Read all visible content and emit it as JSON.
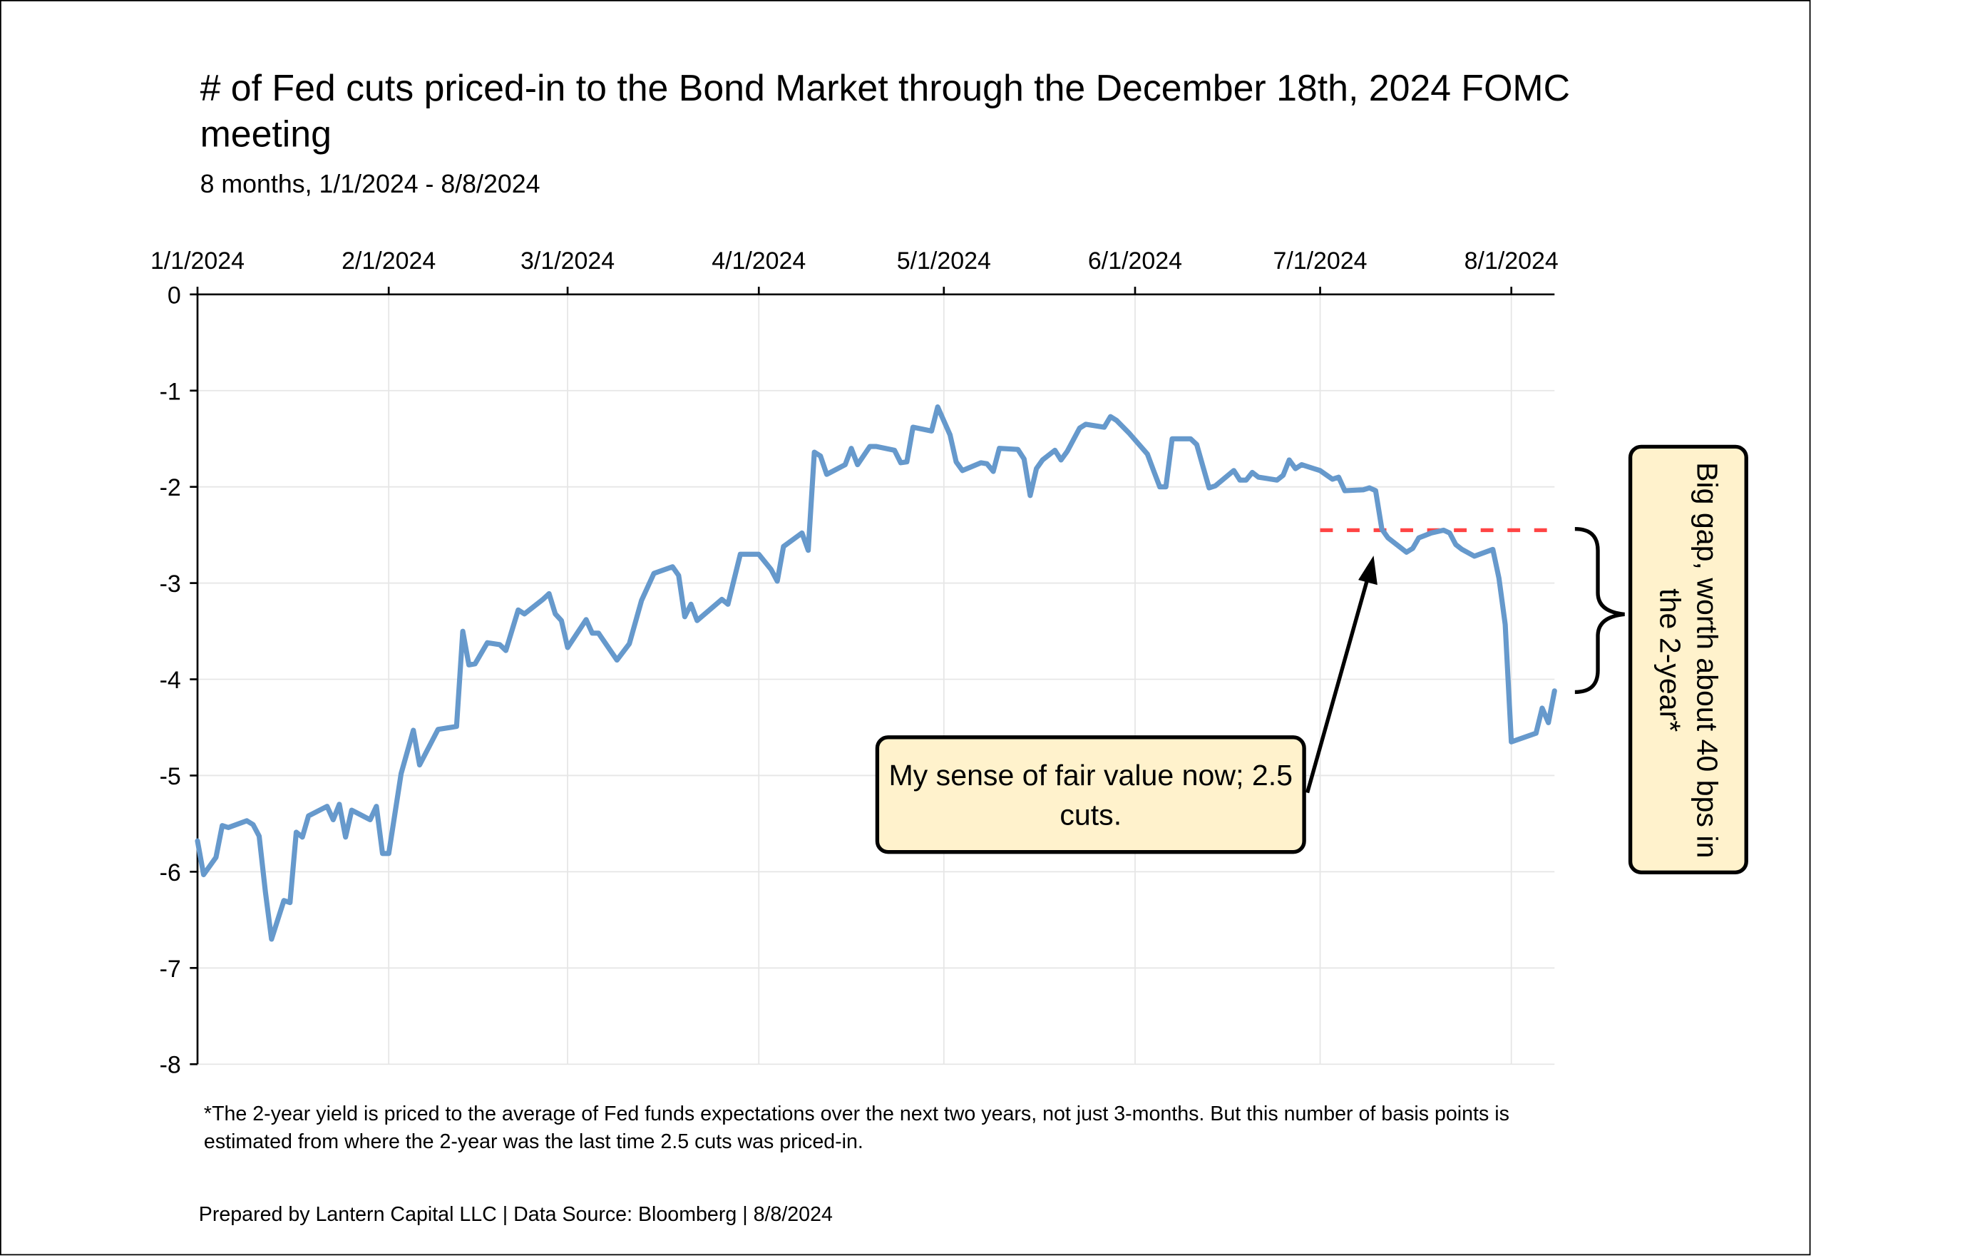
{
  "chart_data": {
    "type": "line",
    "title": "# of Fed cuts priced-in to the Bond Market through the December 18th, 2024 FOMC meeting",
    "subtitle": "8 months, 1/1/2024 - 8/8/2024",
    "xlabel": "",
    "ylabel": "",
    "xlim": [
      "2024-01-01",
      "2024-08-08"
    ],
    "ylim": [
      -8,
      0
    ],
    "x_ticks": [
      "1/1/2024",
      "2/1/2024",
      "3/1/2024",
      "4/1/2024",
      "5/1/2024",
      "6/1/2024",
      "7/1/2024",
      "8/1/2024"
    ],
    "x_tick_dates": [
      "2024-01-01",
      "2024-02-01",
      "2024-03-01",
      "2024-04-01",
      "2024-05-01",
      "2024-06-01",
      "2024-07-01",
      "2024-08-01"
    ],
    "y_ticks": [
      "0",
      "-1",
      "-2",
      "-3",
      "-4",
      "-5",
      "-6",
      "-7",
      "-8"
    ],
    "x_axis_position": "top",
    "grid": true,
    "line_color": "#6699CC",
    "fair_value_line": {
      "value": -2.45,
      "from": "2024-07-01",
      "color": "#FF4444",
      "style": "dashed"
    },
    "x": [
      "2024-01-01",
      "2024-01-02",
      "2024-01-04",
      "2024-01-05",
      "2024-01-06",
      "2024-01-09",
      "2024-01-10",
      "2024-01-11",
      "2024-01-12",
      "2024-01-13",
      "2024-01-15",
      "2024-01-16",
      "2024-01-17",
      "2024-01-18",
      "2024-01-19",
      "2024-01-22",
      "2024-01-23",
      "2024-01-24",
      "2024-01-25",
      "2024-01-26",
      "2024-01-29",
      "2024-01-30",
      "2024-01-31",
      "2024-02-01",
      "2024-02-03",
      "2024-02-05",
      "2024-02-06",
      "2024-02-09",
      "2024-02-12",
      "2024-02-13",
      "2024-02-14",
      "2024-02-15",
      "2024-02-17",
      "2024-02-19",
      "2024-02-20",
      "2024-02-22",
      "2024-02-23",
      "2024-02-26",
      "2024-02-27",
      "2024-02-28",
      "2024-02-29",
      "2024-03-01",
      "2024-03-04",
      "2024-03-05",
      "2024-03-06",
      "2024-03-09",
      "2024-03-11",
      "2024-03-13",
      "2024-03-15",
      "2024-03-18",
      "2024-03-19",
      "2024-03-20",
      "2024-03-21",
      "2024-03-22",
      "2024-03-26",
      "2024-03-27",
      "2024-03-29",
      "2024-04-01",
      "2024-04-03",
      "2024-04-04",
      "2024-04-05",
      "2024-04-08",
      "2024-04-09",
      "2024-04-10",
      "2024-04-11",
      "2024-04-12",
      "2024-04-15",
      "2024-04-16",
      "2024-04-17",
      "2024-04-19",
      "2024-04-20",
      "2024-04-23",
      "2024-04-24",
      "2024-04-25",
      "2024-04-26",
      "2024-04-29",
      "2024-04-30",
      "2024-05-02",
      "2024-05-03",
      "2024-05-04",
      "2024-05-07",
      "2024-05-08",
      "2024-05-09",
      "2024-05-10",
      "2024-05-13",
      "2024-05-14",
      "2024-05-15",
      "2024-05-16",
      "2024-05-17",
      "2024-05-19",
      "2024-05-20",
      "2024-05-21",
      "2024-05-23",
      "2024-05-24",
      "2024-05-27",
      "2024-05-28",
      "2024-05-29",
      "2024-05-31",
      "2024-06-03",
      "2024-06-04",
      "2024-06-05",
      "2024-06-06",
      "2024-06-07",
      "2024-06-10",
      "2024-06-11",
      "2024-06-12",
      "2024-06-13",
      "2024-06-14",
      "2024-06-17",
      "2024-06-18",
      "2024-06-19",
      "2024-06-20",
      "2024-06-21",
      "2024-06-24",
      "2024-06-25",
      "2024-06-26",
      "2024-06-27",
      "2024-06-28",
      "2024-06-30",
      "2024-07-01",
      "2024-07-03",
      "2024-07-04",
      "2024-07-05",
      "2024-07-08",
      "2024-07-09",
      "2024-07-10",
      "2024-07-11",
      "2024-07-12",
      "2024-07-15",
      "2024-07-16",
      "2024-07-17",
      "2024-07-19",
      "2024-07-21",
      "2024-07-22",
      "2024-07-23",
      "2024-07-24",
      "2024-07-26",
      "2024-07-29",
      "2024-07-30",
      "2024-07-31",
      "2024-08-01",
      "2024-08-05",
      "2024-08-06",
      "2024-08-07",
      "2024-08-08"
    ],
    "y": [
      -5.68,
      -6.03,
      -5.85,
      -5.52,
      -5.54,
      -5.47,
      -5.51,
      -5.63,
      -6.21,
      -6.7,
      -6.3,
      -6.32,
      -5.59,
      -5.64,
      -5.42,
      -5.32,
      -5.46,
      -5.3,
      -5.64,
      -5.36,
      -5.46,
      -5.32,
      -5.81,
      -5.81,
      -4.98,
      -4.53,
      -4.89,
      -4.52,
      -4.49,
      -3.5,
      -3.85,
      -3.84,
      -3.62,
      -3.64,
      -3.7,
      -3.28,
      -3.32,
      -3.17,
      -3.11,
      -3.32,
      -3.39,
      -3.67,
      -3.38,
      -3.52,
      -3.52,
      -3.8,
      -3.63,
      -3.18,
      -2.9,
      -2.83,
      -2.92,
      -3.35,
      -3.22,
      -3.39,
      -3.17,
      -3.22,
      -2.7,
      -2.7,
      -2.86,
      -2.98,
      -2.62,
      -2.48,
      -2.66,
      -1.64,
      -1.68,
      -1.87,
      -1.77,
      -1.6,
      -1.77,
      -1.58,
      -1.58,
      -1.62,
      -1.75,
      -1.74,
      -1.38,
      -1.42,
      -1.17,
      -1.46,
      -1.74,
      -1.83,
      -1.75,
      -1.76,
      -1.84,
      -1.6,
      -1.61,
      -1.71,
      -2.09,
      -1.81,
      -1.72,
      -1.62,
      -1.72,
      -1.63,
      -1.39,
      -1.35,
      -1.38,
      -1.27,
      -1.31,
      -1.44,
      -1.66,
      -1.83,
      -2.0,
      -2.0,
      -1.5,
      -1.5,
      -1.56,
      -1.79,
      -2.01,
      -1.99,
      -1.83,
      -1.93,
      -1.93,
      -1.85,
      -1.9,
      -1.93,
      -1.88,
      -1.72,
      -1.81,
      -1.77,
      -1.81,
      -1.83,
      -1.92,
      -1.9,
      -2.04,
      -2.03,
      -2.01,
      -2.04,
      -2.44,
      -2.53,
      -2.68,
      -2.64,
      -2.53,
      -2.48,
      -2.45,
      -2.48,
      -2.6,
      -2.65,
      -2.72,
      -2.65,
      -2.95,
      -3.43,
      -4.65,
      -4.56,
      -4.3,
      -4.45,
      -4.12
    ],
    "annotations": [
      "My sense of fair value now; 2.5 cuts.",
      "Big gap, worth about 40 bps in the 2-year*"
    ]
  },
  "footnote": "*The 2-year yield is priced to the average of Fed funds expectations over the next two years, not just 3-months. But this number of basis points is estimated from where the 2-year was the last time 2.5 cuts was priced-in.",
  "credit": "Prepared by Lantern Capital LLC | Data Source: Bloomberg | 8/8/2024",
  "callout_fill": "#FFF2CC"
}
